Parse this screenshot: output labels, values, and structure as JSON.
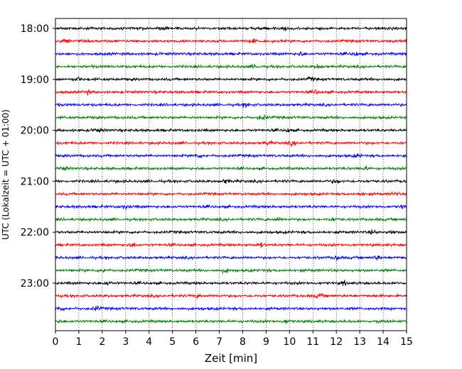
{
  "chart_data": {
    "type": "line",
    "title": "",
    "xlabel": "Zeit  [min]",
    "ylabel": "UTC (Lokalzeit = UTC + 01:00)",
    "xlim": [
      0,
      15
    ],
    "x_ticks": [
      0,
      1,
      2,
      3,
      4,
      5,
      6,
      7,
      8,
      9,
      10,
      11,
      12,
      13,
      14,
      15
    ],
    "y_ticks": [
      "18:00",
      "19:00",
      "20:00",
      "21:00",
      "22:00",
      "23:00"
    ],
    "grid": "vertical dotted at every minute",
    "legend": "none",
    "trace_interval_minutes": 15,
    "trace_start_times": [
      "18:00",
      "18:15",
      "18:30",
      "18:45",
      "19:00",
      "19:15",
      "19:30",
      "19:45",
      "20:00",
      "20:15",
      "20:30",
      "20:45",
      "21:00",
      "21:15",
      "21:30",
      "21:45",
      "22:00",
      "22:15",
      "22:30",
      "22:45",
      "23:00",
      "23:15",
      "23:30",
      "23:45"
    ],
    "trace_color_cycle": [
      "#000000",
      "#ff0000",
      "#0000ff",
      "#008000"
    ]
  }
}
